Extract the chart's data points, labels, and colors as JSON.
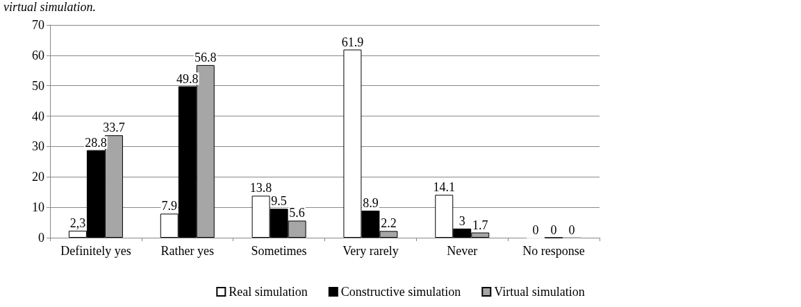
{
  "chart_data": {
    "type": "bar",
    "title": "virtual simulation.",
    "categories": [
      "Definitely yes",
      "Rather yes",
      "Sometimes",
      "Very rarely",
      "Never",
      "No response"
    ],
    "series": [
      {
        "name": "Real simulation",
        "color": "#ffffff",
        "values": [
          2.3,
          7.9,
          13.8,
          61.9,
          14.1,
          0
        ],
        "value_labels": [
          "2,3",
          "7.9",
          "13.8",
          "61.9",
          "14.1",
          "0"
        ]
      },
      {
        "name": "Constructive simulation",
        "color": "#000000",
        "values": [
          28.8,
          49.8,
          9.5,
          8.9,
          3,
          0
        ],
        "value_labels": [
          "28.8",
          "49.8",
          "9.5",
          "8.9",
          "3",
          "0"
        ]
      },
      {
        "name": "Virtual simulation",
        "color": "#a6a6a6",
        "values": [
          33.7,
          56.8,
          5.6,
          2.2,
          1.7,
          0
        ],
        "value_labels": [
          "33.7",
          "56.8",
          "5.6",
          "2.2",
          "1.7",
          "0"
        ]
      }
    ],
    "ylim": [
      0,
      70
    ],
    "yticks": [
      0,
      10,
      20,
      30,
      40,
      50,
      60,
      70
    ],
    "grid": "y",
    "legend": "bottom"
  }
}
